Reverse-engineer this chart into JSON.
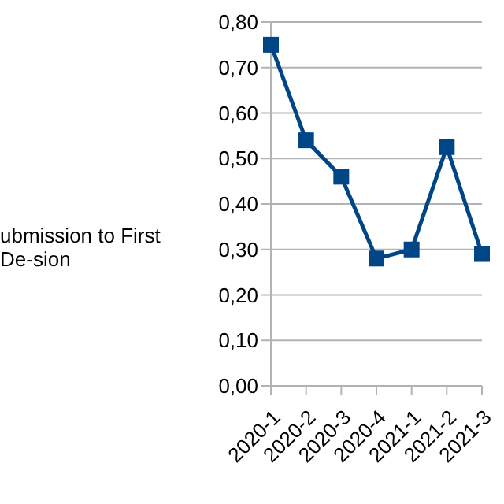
{
  "chart_data": {
    "type": "line",
    "categories": [
      "2020-1",
      "2020-2",
      "2020-3",
      "2020-4",
      "2021-1",
      "2021-2",
      "2021-3"
    ],
    "series": [
      {
        "name": "ubmission to First De-sion",
        "color": "#004586",
        "values": [
          0.75,
          0.54,
          0.46,
          0.28,
          0.3,
          0.525,
          0.29
        ]
      }
    ],
    "ylim": [
      0,
      0.8
    ],
    "yticks": [
      {
        "value": 0,
        "label": "0,00"
      },
      {
        "value": 0.1,
        "label": "0,10"
      },
      {
        "value": 0.2,
        "label": "0,20"
      },
      {
        "value": 0.3,
        "label": "0,30"
      },
      {
        "value": 0.4,
        "label": "0,40"
      },
      {
        "value": 0.5,
        "label": "0,50"
      },
      {
        "value": 0.6,
        "label": "0,60"
      },
      {
        "value": 0.7,
        "label": "0,70"
      },
      {
        "value": 0.8,
        "label": "0,80"
      }
    ],
    "grid": "y",
    "legend": "left",
    "marker": "square",
    "line_style": "solid"
  }
}
